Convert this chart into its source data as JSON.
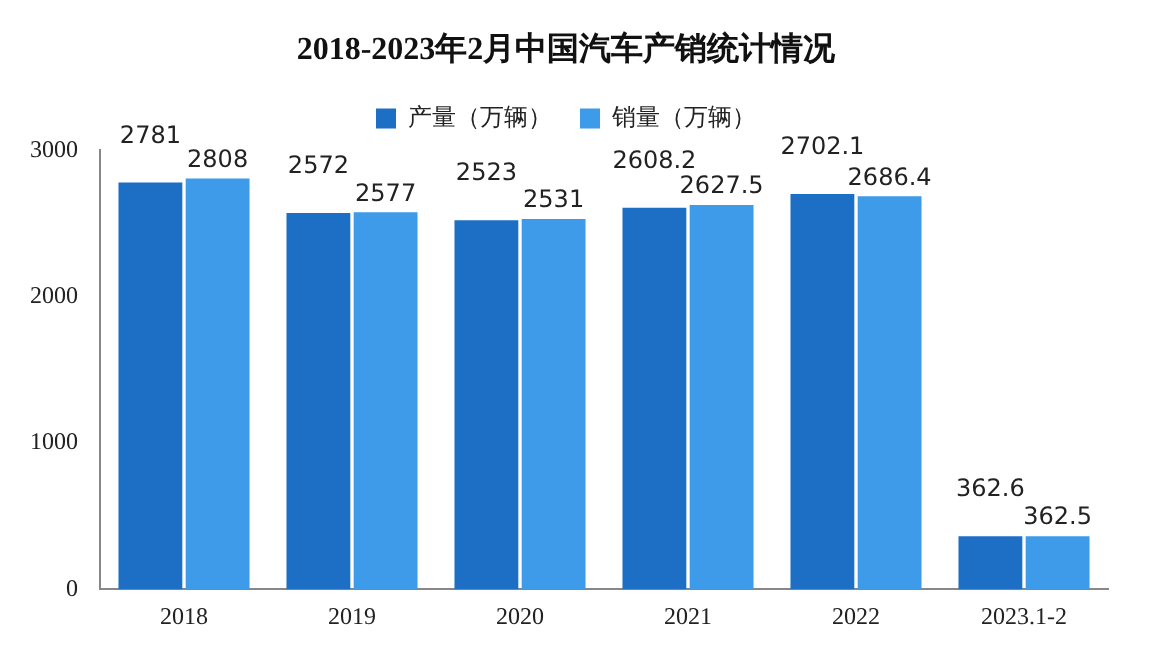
{
  "chart_data": {
    "type": "bar",
    "title": "2018-2023年2月中国汽车产销统计情况",
    "categories": [
      "2018",
      "2019",
      "2020",
      "2021",
      "2022",
      "2023.1-2"
    ],
    "series": [
      {
        "name": "产量（万辆）",
        "color": "#1c6fc4",
        "values": [
          2781,
          2572,
          2523,
          2608.2,
          2702.1,
          362.6
        ]
      },
      {
        "name": "销量（万辆）",
        "color": "#3d9be9",
        "values": [
          2808,
          2577,
          2531,
          2627.5,
          2686.4,
          362.5
        ]
      }
    ],
    "ylim": [
      0,
      3000
    ],
    "yticks": [
      0,
      1000,
      2000,
      3000
    ],
    "grid": false,
    "legend": "top",
    "data_labels": true
  }
}
